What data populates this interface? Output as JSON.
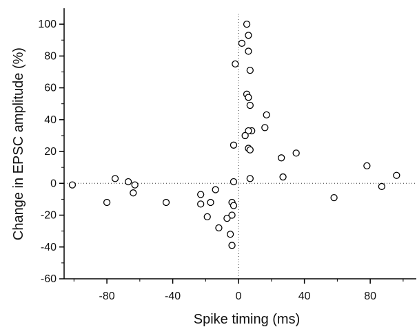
{
  "chart_data": {
    "type": "scatter",
    "title": "",
    "xlabel": "Spike timing (ms)",
    "ylabel": "Change in EPSC amplitude (%)",
    "xlim": [
      -106,
      108
    ],
    "ylim": [
      -60,
      110
    ],
    "x_ticks": [
      -80,
      -40,
      0,
      40,
      80
    ],
    "x_tick_labels": [
      "-80",
      "-40",
      "0",
      "40",
      "80"
    ],
    "y_ticks": [
      -60,
      -40,
      -20,
      0,
      20,
      40,
      60,
      80,
      100
    ],
    "y_tick_labels": [
      "-60",
      "-40",
      "-20",
      "0",
      "20",
      "40",
      "60",
      "80",
      "100"
    ],
    "reference_lines": {
      "x": 0,
      "y": 0,
      "style": "dotted"
    },
    "grid": false,
    "legend": "none",
    "marker": "open-circle",
    "points": [
      {
        "x": -101,
        "y": -1
      },
      {
        "x": -80,
        "y": -12
      },
      {
        "x": -75,
        "y": 3
      },
      {
        "x": -67,
        "y": 1
      },
      {
        "x": -64,
        "y": -6
      },
      {
        "x": -63,
        "y": -1
      },
      {
        "x": -44,
        "y": -12
      },
      {
        "x": -23,
        "y": -7
      },
      {
        "x": -23,
        "y": -13
      },
      {
        "x": -19,
        "y": -21
      },
      {
        "x": -17,
        "y": -12
      },
      {
        "x": -14,
        "y": -4
      },
      {
        "x": -12,
        "y": -28
      },
      {
        "x": -7,
        "y": -22
      },
      {
        "x": -5,
        "y": -32
      },
      {
        "x": -4,
        "y": -12
      },
      {
        "x": -4,
        "y": -20
      },
      {
        "x": -3,
        "y": -14
      },
      {
        "x": -4,
        "y": -39
      },
      {
        "x": -3,
        "y": 1
      },
      {
        "x": -3,
        "y": 24
      },
      {
        "x": -2,
        "y": 75
      },
      {
        "x": 2,
        "y": 88
      },
      {
        "x": 5,
        "y": 100
      },
      {
        "x": 6,
        "y": 93
      },
      {
        "x": 6,
        "y": 83
      },
      {
        "x": 7,
        "y": 71
      },
      {
        "x": 5,
        "y": 56
      },
      {
        "x": 6,
        "y": 54
      },
      {
        "x": 7,
        "y": 49
      },
      {
        "x": 17,
        "y": 43
      },
      {
        "x": 16,
        "y": 35
      },
      {
        "x": 8,
        "y": 33
      },
      {
        "x": 6,
        "y": 33
      },
      {
        "x": 4,
        "y": 30
      },
      {
        "x": 6,
        "y": 22
      },
      {
        "x": 7,
        "y": 21
      },
      {
        "x": 35,
        "y": 19
      },
      {
        "x": 26,
        "y": 16
      },
      {
        "x": 27,
        "y": 4
      },
      {
        "x": 7,
        "y": 3
      },
      {
        "x": 58,
        "y": -9
      },
      {
        "x": 78,
        "y": 11
      },
      {
        "x": 87,
        "y": -2
      },
      {
        "x": 96,
        "y": 5
      }
    ]
  }
}
